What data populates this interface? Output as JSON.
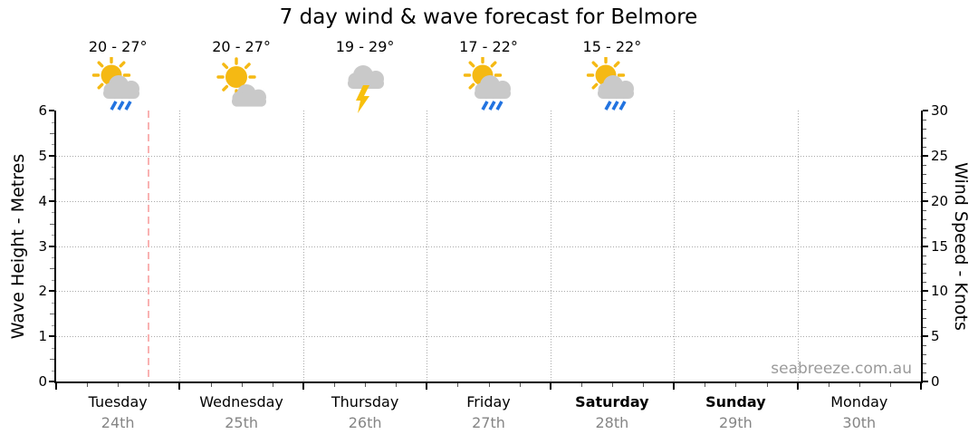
{
  "title": "7 day wind & wave forecast for Belmore",
  "watermark": "seabreeze.com.au",
  "left_axis": {
    "title": "Wave Height - Metres",
    "min": 0,
    "max": 6,
    "major_step": 1,
    "ticks": [
      "0",
      "1",
      "2",
      "3",
      "4",
      "5",
      "6"
    ]
  },
  "right_axis": {
    "title": "Wind Speed - Knots",
    "min": 0,
    "max": 30,
    "major_step": 5,
    "ticks": [
      "0",
      "5",
      "10",
      "15",
      "20",
      "25",
      "30"
    ]
  },
  "days": [
    {
      "name": "Tuesday",
      "date": "24th",
      "temp": "20 - 27°",
      "icon": "sun-cloud-rain",
      "weekend": false
    },
    {
      "name": "Wednesday",
      "date": "25th",
      "temp": "20 - 27°",
      "icon": "sun-cloud",
      "weekend": false
    },
    {
      "name": "Thursday",
      "date": "26th",
      "temp": "19 - 29°",
      "icon": "thunderstorm",
      "weekend": false
    },
    {
      "name": "Friday",
      "date": "27th",
      "temp": "17 - 22°",
      "icon": "sun-cloud-rain",
      "weekend": false
    },
    {
      "name": "Saturday",
      "date": "28th",
      "temp": "15 - 22°",
      "icon": "sun-cloud-rain",
      "weekend": true
    },
    {
      "name": "Sunday",
      "date": "29th",
      "temp": null,
      "icon": null,
      "weekend": true
    },
    {
      "name": "Monday",
      "date": "30th",
      "temp": null,
      "icon": null,
      "weekend": false
    }
  ],
  "colors": {
    "sun": "#f5b913",
    "cloud": "#c9c9c9",
    "rain": "#2273e0",
    "lightning": "#f8c00d",
    "now_line": "#f9b2b2",
    "grid": "#aaaaaa",
    "axis": "#000000",
    "minor_tick": "#555555",
    "date_text": "#858585",
    "watermark_text": "#9a9a9a"
  },
  "chart_data": {
    "type": "line",
    "title": "7 day wind & wave forecast for Belmore",
    "categories": [
      "Tuesday 24th",
      "Wednesday 25th",
      "Thursday 26th",
      "Friday 27th",
      "Saturday 28th",
      "Sunday 29th",
      "Monday 30th"
    ],
    "series": [
      {
        "name": "Wave Height",
        "axis": "left",
        "unit": "metres",
        "values": []
      },
      {
        "name": "Wind Speed",
        "axis": "right",
        "unit": "knots",
        "values": []
      }
    ],
    "left_ylim": [
      0,
      6
    ],
    "right_ylim": [
      0,
      30
    ],
    "grid": true,
    "legend": "none",
    "now_marker": {
      "day": "Tuesday",
      "fraction_of_day": 0.75
    },
    "daily_forecast": [
      {
        "day": "Tuesday",
        "date": "24th",
        "temp_range": "20 - 27°",
        "condition": "sun-cloud-rain"
      },
      {
        "day": "Wednesday",
        "date": "25th",
        "temp_range": "20 - 27°",
        "condition": "sun-cloud"
      },
      {
        "day": "Thursday",
        "date": "26th",
        "temp_range": "19 - 29°",
        "condition": "thunderstorm"
      },
      {
        "day": "Friday",
        "date": "27th",
        "temp_range": "17 - 22°",
        "condition": "sun-cloud-rain"
      },
      {
        "day": "Saturday",
        "date": "28th",
        "temp_range": "15 - 22°",
        "condition": "sun-cloud-rain"
      }
    ]
  }
}
